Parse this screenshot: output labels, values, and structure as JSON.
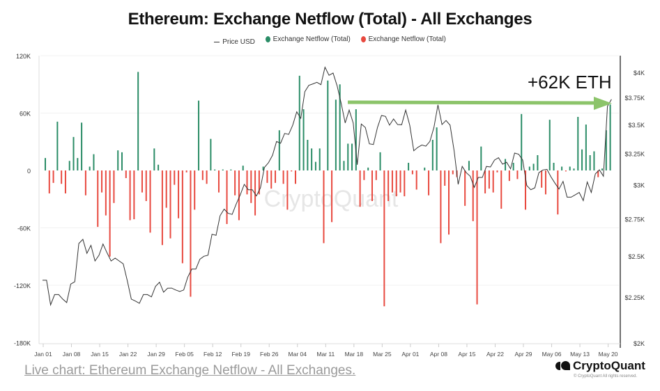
{
  "chart_data": {
    "type": "bar+line",
    "title": "Ethereum: Exchange Netflow (Total) - All Exchanges",
    "legend": [
      "Price USD",
      "Exchange Netflow (Total)",
      "Exchange Netflow (Total)"
    ],
    "legend_placement": "top",
    "colors": {
      "price": "#333333",
      "inflow": "#2a8c66",
      "outflow": "#e8493f",
      "arrow": "#8cc46a"
    },
    "left_axis": {
      "ticks": [
        "120K",
        "60K",
        "0",
        "-60K",
        "-120K",
        "-180K"
      ],
      "ylim": [
        -180,
        120
      ],
      "unit": "K"
    },
    "right_axis": {
      "ticks": [
        "$4K",
        "$3.75K",
        "$3.5K",
        "$3.25K",
        "$3K",
        "$2.75K",
        "$2.5K",
        "$2.25K",
        "$2K"
      ],
      "ylim": [
        2000,
        4000
      ],
      "scale": "log"
    },
    "x_ticks": [
      "Jan 01",
      "Jan 08",
      "Jan 15",
      "Jan 22",
      "Jan 29",
      "Feb 05",
      "Feb 12",
      "Feb 19",
      "Feb 26",
      "Mar 04",
      "Mar 11",
      "Mar 18",
      "Mar 25",
      "Apr 01",
      "Apr 08",
      "Apr 15",
      "Apr 22",
      "Apr 29",
      "May 06",
      "May 13",
      "May 20"
    ],
    "grid": true,
    "dates": [
      "Jan 01",
      "Jan 02",
      "Jan 03",
      "Jan 04",
      "Jan 05",
      "Jan 06",
      "Jan 07",
      "Jan 08",
      "Jan 09",
      "Jan 10",
      "Jan 11",
      "Jan 12",
      "Jan 13",
      "Jan 14",
      "Jan 15",
      "Jan 16",
      "Jan 17",
      "Jan 18",
      "Jan 19",
      "Jan 20",
      "Jan 21",
      "Jan 22",
      "Jan 23",
      "Jan 24",
      "Jan 25",
      "Jan 26",
      "Jan 27",
      "Jan 28",
      "Jan 29",
      "Jan 30",
      "Jan 31",
      "Feb 01",
      "Feb 02",
      "Feb 03",
      "Feb 04",
      "Feb 05",
      "Feb 06",
      "Feb 07",
      "Feb 08",
      "Feb 09",
      "Feb 10",
      "Feb 11",
      "Feb 12",
      "Feb 13",
      "Feb 14",
      "Feb 15",
      "Feb 16",
      "Feb 17",
      "Feb 18",
      "Feb 19",
      "Feb 20",
      "Feb 21",
      "Feb 22",
      "Feb 23",
      "Feb 24",
      "Feb 25",
      "Feb 26",
      "Feb 27",
      "Feb 28",
      "Feb 29",
      "Mar 01",
      "Mar 02",
      "Mar 03",
      "Mar 04",
      "Mar 05",
      "Mar 06",
      "Mar 07",
      "Mar 08",
      "Mar 09",
      "Mar 10",
      "Mar 11",
      "Mar 12",
      "Mar 13",
      "Mar 14",
      "Mar 15",
      "Mar 16",
      "Mar 17",
      "Mar 18",
      "Mar 19",
      "Mar 20",
      "Mar 21",
      "Mar 22",
      "Mar 23",
      "Mar 24",
      "Mar 25",
      "Mar 26",
      "Mar 27",
      "Mar 28",
      "Mar 29",
      "Mar 30",
      "Mar 31",
      "Apr 01",
      "Apr 02",
      "Apr 03",
      "Apr 04",
      "Apr 05",
      "Apr 06",
      "Apr 07",
      "Apr 08",
      "Apr 09",
      "Apr 10",
      "Apr 11",
      "Apr 12",
      "Apr 13",
      "Apr 14",
      "Apr 15",
      "Apr 16",
      "Apr 17",
      "Apr 18",
      "Apr 19",
      "Apr 20",
      "Apr 21",
      "Apr 22",
      "Apr 23",
      "Apr 24",
      "Apr 25",
      "Apr 26",
      "Apr 27",
      "Apr 28",
      "Apr 29",
      "Apr 30",
      "May 01",
      "May 02",
      "May 03",
      "May 04",
      "May 05",
      "May 06",
      "May 07",
      "May 08",
      "May 09",
      "May 10",
      "May 11",
      "May 12",
      "May 13",
      "May 14",
      "May 15",
      "May 16",
      "May 17",
      "May 18",
      "May 19",
      "May 20",
      "May 21"
    ],
    "netflow_k": [
      13,
      -24,
      -13,
      51,
      -14,
      -24,
      10,
      35,
      13,
      50,
      -26,
      4,
      17,
      -59,
      -23,
      -47,
      -90,
      -34,
      21,
      19,
      -8,
      -52,
      -51,
      103,
      -23,
      -32,
      -65,
      23,
      6,
      -78,
      -39,
      -71,
      -15,
      -50,
      -97,
      -2,
      -132,
      -41,
      73,
      -10,
      -14,
      33,
      1,
      -23,
      1,
      -56,
      1,
      -26,
      -52,
      5,
      -25,
      -34,
      -47,
      -25,
      4,
      -13,
      -19,
      -13,
      42,
      -14,
      -41,
      -1,
      -14,
      99,
      64,
      32,
      23,
      9,
      23,
      -76,
      94,
      -54,
      74,
      90,
      10,
      28,
      28,
      64,
      -38,
      -10,
      3,
      -32,
      -10,
      19,
      -142,
      -32,
      -23,
      -27,
      -23,
      -27,
      8,
      -4,
      -20,
      0,
      3,
      -26,
      32,
      45,
      -76,
      -16,
      -67,
      -4,
      -7,
      0,
      -37,
      10,
      -53,
      -140,
      25,
      -24,
      -19,
      -23,
      -2,
      -40,
      12,
      -11,
      8,
      -9,
      59,
      -41,
      4,
      7,
      16,
      -18,
      -25,
      53,
      8,
      -46,
      4,
      -1,
      4,
      2,
      56,
      22,
      48,
      16,
      20,
      -7,
      2,
      42,
      69
    ],
    "price_usd": [
      2353,
      2353,
      2209,
      2268,
      2268,
      2242,
      2222,
      2330,
      2344,
      2585,
      2613,
      2521,
      2573,
      2472,
      2509,
      2582,
      2524,
      2472,
      2490,
      2472,
      2454,
      2351,
      2242,
      2231,
      2218,
      2268,
      2268,
      2255,
      2316,
      2341,
      2282,
      2305,
      2306,
      2295,
      2286,
      2295,
      2372,
      2421,
      2421,
      2483,
      2502,
      2509,
      2647,
      2640,
      2776,
      2823,
      2793,
      2785,
      2860,
      2928,
      3008,
      2967,
      2967,
      2920,
      2981,
      3141,
      3179,
      3240,
      3357,
      3341,
      3427,
      3418,
      3500,
      3622,
      3562,
      3814,
      3876,
      3890,
      3906,
      3883,
      4060,
      3977,
      4000,
      3872,
      3703,
      3520,
      3638,
      3520,
      3163,
      3510,
      3479,
      3337,
      3331,
      3479,
      3588,
      3580,
      3500,
      3556,
      3506,
      3504,
      3638,
      3500,
      3278,
      3307,
      3327,
      3317,
      3357,
      3479,
      3687,
      3506,
      3542,
      3500,
      3278,
      3008,
      3149,
      3099,
      3071,
      2985,
      3062,
      3062,
      3149,
      3145,
      3201,
      3220,
      3167,
      3183,
      3130,
      3259,
      3249,
      3201,
      2999,
      2967,
      2981,
      3099,
      3121,
      3126,
      3067,
      3017,
      2972,
      3031,
      2911,
      2911,
      2928,
      2946,
      2885,
      3026,
      2946,
      3089,
      3122,
      3071,
      3674,
      3740
    ],
    "annotation": "+62K ETH",
    "watermark": "CryptoQuant"
  },
  "footer": {
    "caption": "Live chart: Ethereum Exchange Netflow - All Exchanges.",
    "brand": "CryptoQuant",
    "copyright": "© CryptoQuant All rights reserved."
  }
}
